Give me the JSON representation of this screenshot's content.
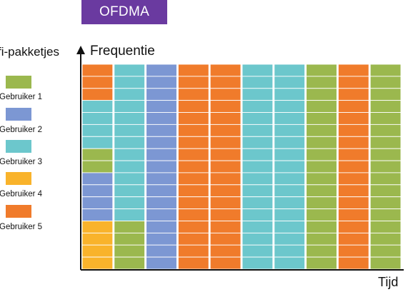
{
  "title": "OFDMA",
  "legend": {
    "title": "fi-pakketjes",
    "items": [
      {
        "label": "Gebruiker 1",
        "color": "#9bb84e"
      },
      {
        "label": "Gebruiker 2",
        "color": "#7c97d3"
      },
      {
        "label": "Gebruiker 3",
        "color": "#6cc7cc"
      },
      {
        "label": "Gebruiker 4",
        "color": "#f9b32b"
      },
      {
        "label": "Gebruiker 5",
        "color": "#f07b2b"
      }
    ]
  },
  "axes": {
    "y_label": "Frequentie",
    "x_label": "Tijd"
  },
  "grid": {
    "columns": [
      [
        5,
        5,
        5,
        3,
        3,
        3,
        3,
        1,
        1,
        2,
        2,
        2,
        2,
        4,
        4,
        4,
        4
      ],
      [
        3,
        3,
        3,
        3,
        3,
        3,
        3,
        3,
        3,
        3,
        3,
        3,
        3,
        1,
        1,
        1,
        1
      ],
      [
        2,
        2,
        2,
        2,
        2,
        2,
        2,
        2,
        2,
        2,
        2,
        2,
        2,
        2,
        2,
        2,
        2
      ],
      [
        5,
        5,
        5,
        5,
        5,
        5,
        5,
        5,
        5,
        5,
        5,
        5,
        5,
        5,
        5,
        5,
        5
      ],
      [
        5,
        5,
        5,
        5,
        5,
        5,
        5,
        5,
        5,
        5,
        5,
        5,
        5,
        5,
        5,
        5,
        5
      ],
      [
        3,
        3,
        3,
        3,
        3,
        3,
        3,
        3,
        3,
        3,
        3,
        3,
        3,
        3,
        3,
        3,
        3
      ],
      [
        3,
        3,
        3,
        3,
        3,
        3,
        3,
        3,
        3,
        3,
        3,
        3,
        3,
        3,
        3,
        3,
        3
      ],
      [
        1,
        1,
        1,
        1,
        1,
        1,
        1,
        1,
        1,
        1,
        1,
        1,
        1,
        1,
        1,
        1,
        1
      ],
      [
        5,
        5,
        5,
        5,
        5,
        5,
        5,
        5,
        5,
        5,
        5,
        5,
        5,
        5,
        5,
        5,
        5
      ],
      [
        1,
        1,
        1,
        1,
        1,
        1,
        1,
        1,
        1,
        1,
        1,
        1,
        1,
        1,
        1,
        1,
        1
      ]
    ]
  }
}
